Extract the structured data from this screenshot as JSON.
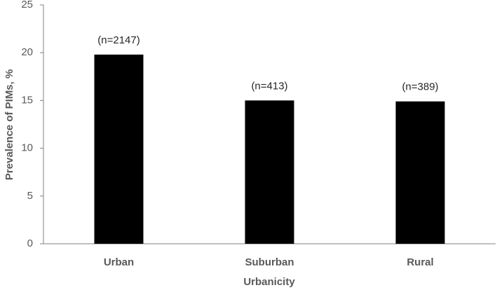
{
  "chart_data": {
    "type": "bar",
    "x_label": "Urbanicity",
    "y_label": "Prevalence of PIMs, %",
    "categories": [
      "Urban",
      "Suburban",
      "Rural"
    ],
    "values": [
      19.8,
      15.0,
      14.9
    ],
    "annotations": [
      "(n=2147)",
      "(n=413)",
      "(n=389)"
    ],
    "color": "#000000",
    "ylim": [
      0,
      25
    ],
    "yticks": [
      0,
      5,
      10,
      15,
      20,
      25
    ],
    "grid": false
  }
}
